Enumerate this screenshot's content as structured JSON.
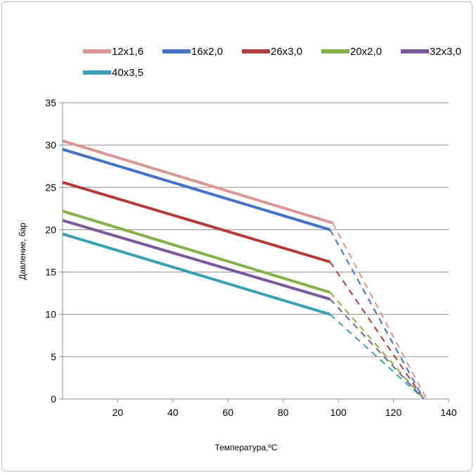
{
  "chart_data": {
    "type": "line",
    "xlabel": "Температура,ºС",
    "ylabel": "Давление, бар",
    "xlim": [
      0,
      140
    ],
    "ylim": [
      0,
      35
    ],
    "x_ticks": [
      "20",
      "40",
      "60",
      "80",
      "100",
      "120",
      "140"
    ],
    "y_ticks": [
      "0",
      "5",
      "10",
      "15",
      "20",
      "25",
      "30",
      "35"
    ],
    "grid": "horizontal",
    "legend_position": "top",
    "series": [
      {
        "name": "12х1,6",
        "color": "#d99694",
        "solid": [
          [
            0,
            30.5
          ],
          [
            98,
            20.8
          ]
        ],
        "dashed": [
          [
            98,
            20.8
          ],
          [
            132,
            0
          ]
        ]
      },
      {
        "name": "16х2,0",
        "color": "#4472c4",
        "solid": [
          [
            0,
            29.5
          ],
          [
            97,
            20.0
          ]
        ],
        "dashed": [
          [
            97,
            20.0
          ],
          [
            131,
            0
          ]
        ]
      },
      {
        "name": "26х3,0",
        "color": "#b03c3c",
        "solid": [
          [
            0,
            25.6
          ],
          [
            97,
            16.2
          ]
        ],
        "dashed": [
          [
            97,
            16.2
          ],
          [
            131,
            0
          ]
        ]
      },
      {
        "name": "20х2,0",
        "color": "#86b04a",
        "solid": [
          [
            0,
            22.2
          ],
          [
            97,
            12.6
          ]
        ],
        "dashed": [
          [
            97,
            12.6
          ],
          [
            131,
            0
          ]
        ]
      },
      {
        "name": "32х3,0",
        "color": "#7a5a9c",
        "solid": [
          [
            0,
            21.1
          ],
          [
            97,
            11.8
          ]
        ],
        "dashed": [
          [
            97,
            11.8
          ],
          [
            131,
            0
          ]
        ]
      },
      {
        "name": "40х3,5",
        "color": "#3aa0b4",
        "solid": [
          [
            0,
            19.5
          ],
          [
            97,
            10.0
          ]
        ],
        "dashed": [
          [
            97,
            10.0
          ],
          [
            131,
            0
          ]
        ]
      }
    ]
  }
}
